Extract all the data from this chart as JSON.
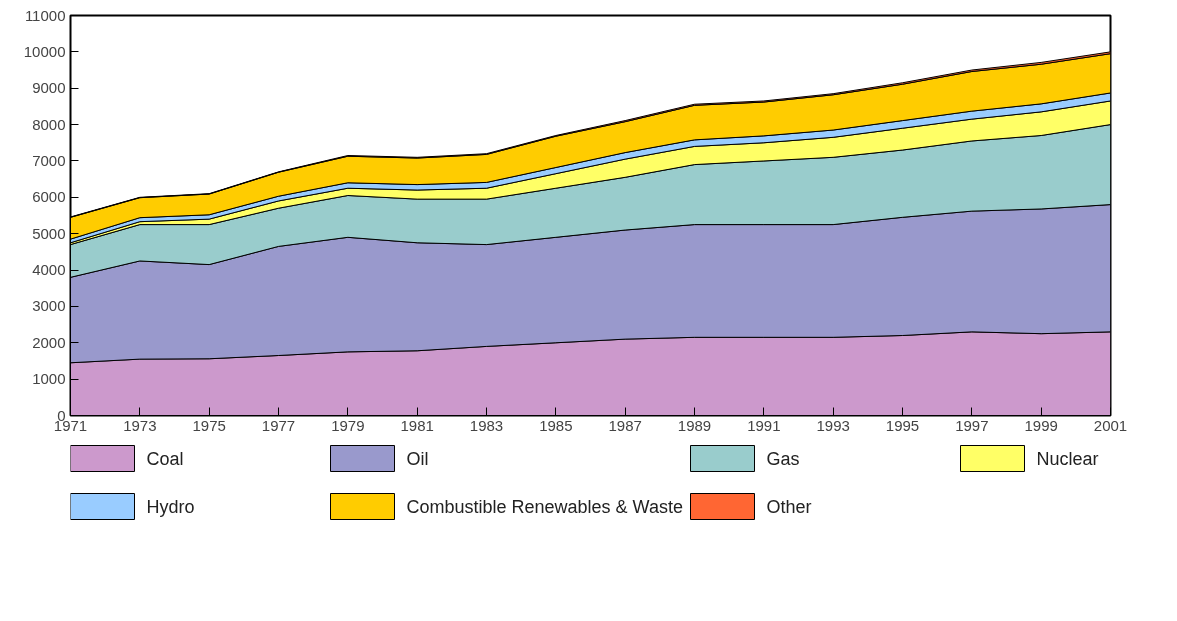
{
  "chart_data": {
    "type": "area",
    "stacked": true,
    "x": [
      1971,
      1973,
      1975,
      1977,
      1979,
      1981,
      1983,
      1985,
      1987,
      1989,
      1991,
      1993,
      1995,
      1997,
      1999,
      2001
    ],
    "xlim": [
      1971,
      2001
    ],
    "xticks": [
      1971,
      1973,
      1975,
      1977,
      1979,
      1981,
      1983,
      1985,
      1987,
      1989,
      1991,
      1993,
      1995,
      1997,
      1999,
      2001
    ],
    "ylim": [
      0,
      11000
    ],
    "yticks": [
      0,
      1000,
      2000,
      3000,
      4000,
      5000,
      6000,
      7000,
      8000,
      9000,
      10000,
      11000
    ],
    "grid": false,
    "legend": "bottom",
    "series": [
      {
        "name": "Coal",
        "color": "#cc99cc",
        "values": [
          1450,
          1550,
          1560,
          1650,
          1750,
          1780,
          1900,
          2000,
          2100,
          2150,
          2150,
          2150,
          2200,
          2300,
          2250,
          2300
        ]
      },
      {
        "name": "Oil",
        "color": "#9999cc",
        "values": [
          2350,
          2700,
          2590,
          3000,
          3150,
          2970,
          2800,
          2900,
          3000,
          3100,
          3100,
          3100,
          3250,
          3320,
          3430,
          3500
        ]
      },
      {
        "name": "Gas",
        "color": "#99cccc",
        "values": [
          900,
          1000,
          1100,
          1050,
          1150,
          1200,
          1250,
          1350,
          1450,
          1650,
          1750,
          1850,
          1850,
          1930,
          2020,
          2200
        ]
      },
      {
        "name": "Nuclear",
        "color": "#ffff66",
        "values": [
          50,
          80,
          150,
          200,
          200,
          250,
          300,
          400,
          500,
          500,
          500,
          550,
          600,
          600,
          650,
          650
        ]
      },
      {
        "name": "Hydro",
        "color": "#99ccff",
        "values": [
          100,
          110,
          120,
          130,
          150,
          150,
          160,
          170,
          180,
          180,
          190,
          200,
          210,
          220,
          220,
          220
        ]
      },
      {
        "name": "Combustible Renewables & Waste",
        "color": "#ffcc00",
        "values": [
          600,
          550,
          570,
          660,
          730,
          730,
          770,
          860,
          850,
          950,
          930,
          970,
          1000,
          1090,
          1090,
          1080
        ]
      },
      {
        "name": "Other",
        "color": "#ff6633",
        "values": [
          10,
          10,
          10,
          10,
          20,
          20,
          20,
          20,
          30,
          30,
          30,
          30,
          40,
          40,
          50,
          50
        ]
      }
    ]
  }
}
